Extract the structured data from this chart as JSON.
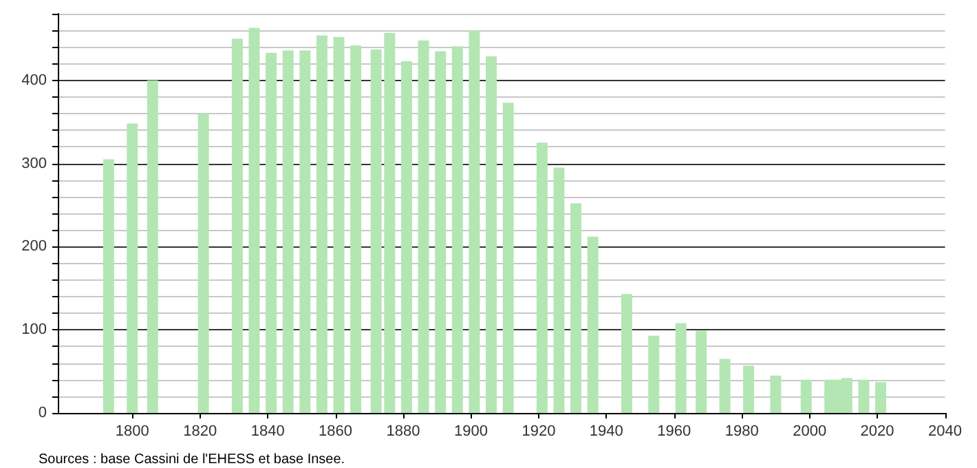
{
  "chart_data": {
    "type": "bar",
    "color": "#b3e6b3",
    "x": [
      1793,
      1800,
      1806,
      1821,
      1831,
      1836,
      1841,
      1846,
      1851,
      1856,
      1861,
      1866,
      1872,
      1876,
      1881,
      1886,
      1891,
      1896,
      1901,
      1906,
      1911,
      1921,
      1926,
      1931,
      1936,
      1946,
      1954,
      1962,
      1968,
      1975,
      1982,
      1990,
      1999,
      2006,
      2008,
      2011,
      2016,
      2021
    ],
    "values": [
      305,
      348,
      400,
      360,
      450,
      463,
      433,
      436,
      436,
      454,
      452,
      442,
      437,
      457,
      423,
      448,
      435,
      441,
      460,
      429,
      373,
      325,
      295,
      252,
      212,
      143,
      93,
      108,
      99,
      65,
      57,
      45,
      40,
      40,
      40,
      42,
      40,
      37
    ],
    "xlim": [
      1778,
      2040
    ],
    "xticks": [
      1800,
      1820,
      1840,
      1860,
      1880,
      1900,
      1920,
      1940,
      1960,
      1980,
      2000,
      2020,
      2040
    ],
    "ylim": [
      0,
      480
    ],
    "yticks": [
      0,
      {
        "value": 20,
        "label": null
      },
      {
        "value": 40,
        "label": null
      },
      {
        "value": 60,
        "label": null
      },
      {
        "value": 80,
        "label": null
      },
      100,
      {
        "value": 120,
        "label": null
      },
      {
        "value": 140,
        "label": null
      },
      {
        "value": 160,
        "label": null
      },
      {
        "value": 180,
        "label": null
      },
      200,
      {
        "value": 220,
        "label": null
      },
      {
        "value": 240,
        "label": null
      },
      {
        "value": 260,
        "label": null
      },
      {
        "value": 280,
        "label": null
      },
      300,
      {
        "value": 320,
        "label": null
      },
      {
        "value": 340,
        "label": null
      },
      {
        "value": 360,
        "label": null
      },
      {
        "value": 380,
        "label": null
      },
      400,
      {
        "value": 420,
        "label": null
      },
      {
        "value": 440,
        "label": null
      },
      {
        "value": 460,
        "label": null
      },
      {
        "value": 480,
        "label": null
      }
    ],
    "grid": "y",
    "annotations": [
      "Sources : base Cassini de l'EHESS et base Insee."
    ]
  }
}
